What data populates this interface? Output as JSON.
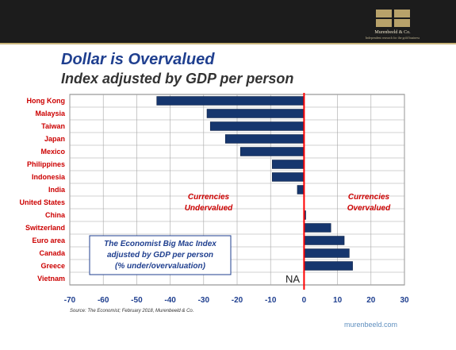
{
  "header": {
    "company_name": "Murenbeeld & Co.",
    "company_tagline": "Independent research for the gold business"
  },
  "title": "Dollar is Overvalued",
  "subtitle": "Index adjusted by GDP per person",
  "chart_data": {
    "type": "bar",
    "orientation": "horizontal",
    "categories": [
      "Hong Kong",
      "Malaysia",
      "Taiwan",
      "Japan",
      "Mexico",
      "Philippines",
      "Indonesia",
      "India",
      "United States",
      "China",
      "Switzerland",
      "Euro area",
      "Canada",
      "Greece",
      "Vietnam"
    ],
    "values": [
      -44,
      -29,
      -28,
      -23.5,
      -19,
      -9.5,
      -9.5,
      -2,
      0,
      0.5,
      8,
      12,
      13.5,
      14.5,
      null
    ],
    "xlim": [
      -70,
      30
    ],
    "xticks": [
      -70,
      -60,
      -50,
      -40,
      -30,
      -20,
      -10,
      0,
      10,
      20,
      30
    ],
    "grid": true,
    "bar_color": "#16366e",
    "zero_line_color": "#ff0000",
    "annotations": {
      "undervalued": "Currencies\nUndervalued",
      "overvalued": "Currencies\nOvervalued",
      "index_box": "The Economist Big Mac Index\nadjusted by GDP per person\n(% under/overvaluation)",
      "na_label": "NA"
    }
  },
  "footer": {
    "source": "Source: The Economist; February 2018, Murenbeeld & Co.",
    "website": "murenbeeld.com"
  }
}
